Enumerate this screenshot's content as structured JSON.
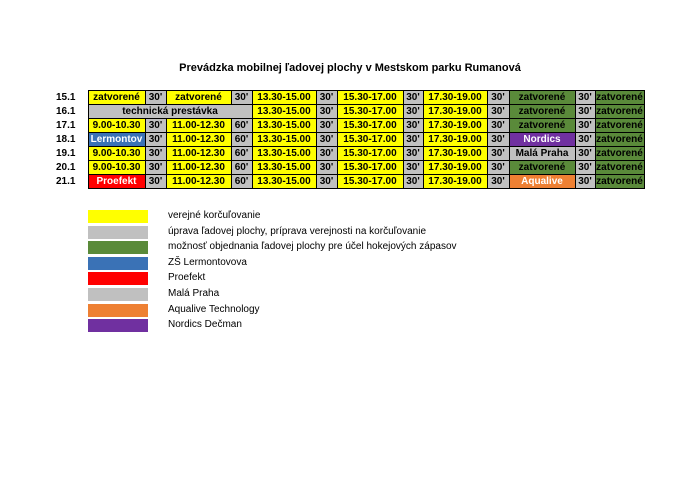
{
  "title": "Prevádzka mobilnej ľadovej plochy v Mestskom parku Rumanová",
  "colors": {
    "yellow": "#ffff00",
    "gray": "#c0c0c0",
    "green": "#5a8a3a",
    "blue": "#3a72b6",
    "red": "#ff0000",
    "orange": "#ee8033",
    "purple": "#7030a0"
  },
  "schedule": [
    {
      "day": "15.1",
      "cells": [
        {
          "text": "zatvorené",
          "color": "yellow",
          "span": 1
        },
        {
          "text": "30'",
          "color": "gray",
          "span": 1
        },
        {
          "text": "zatvorené",
          "color": "yellow",
          "span": 1
        },
        {
          "text": "30'",
          "color": "gray",
          "span": 1
        },
        {
          "text": "13.30-15.00",
          "color": "yellow",
          "span": 1
        },
        {
          "text": "30'",
          "color": "gray",
          "span": 1
        },
        {
          "text": "15.30-17.00",
          "color": "yellow",
          "span": 1
        },
        {
          "text": "30'",
          "color": "gray",
          "span": 1
        },
        {
          "text": "17.30-19.00",
          "color": "yellow",
          "span": 1
        },
        {
          "text": "30'",
          "color": "gray",
          "span": 1
        },
        {
          "text": "zatvorené",
          "color": "green",
          "span": 1
        },
        {
          "text": "30'",
          "color": "gray",
          "span": 1
        },
        {
          "text": "zatvorené",
          "color": "green",
          "span": 1
        }
      ]
    },
    {
      "day": "16.1",
      "cells": [
        {
          "text": "technická prestávka",
          "color": "gray",
          "span": 4
        },
        {
          "text": "13.30-15.00",
          "color": "yellow",
          "span": 1
        },
        {
          "text": "30'",
          "color": "gray",
          "span": 1
        },
        {
          "text": "15.30-17.00",
          "color": "yellow",
          "span": 1
        },
        {
          "text": "30'",
          "color": "gray",
          "span": 1
        },
        {
          "text": "17.30-19.00",
          "color": "yellow",
          "span": 1
        },
        {
          "text": "30'",
          "color": "gray",
          "span": 1
        },
        {
          "text": "zatvorené",
          "color": "green",
          "span": 1
        },
        {
          "text": "30'",
          "color": "gray",
          "span": 1
        },
        {
          "text": "zatvorené",
          "color": "green",
          "span": 1
        }
      ]
    },
    {
      "day": "17.1",
      "cells": [
        {
          "text": "9.00-10.30",
          "color": "yellow",
          "span": 1
        },
        {
          "text": "30'",
          "color": "gray",
          "span": 1
        },
        {
          "text": "11.00-12.30",
          "color": "yellow",
          "span": 1
        },
        {
          "text": "60'",
          "color": "gray",
          "span": 1
        },
        {
          "text": "13.30-15.00",
          "color": "yellow",
          "span": 1
        },
        {
          "text": "30'",
          "color": "gray",
          "span": 1
        },
        {
          "text": "15.30-17.00",
          "color": "yellow",
          "span": 1
        },
        {
          "text": "30'",
          "color": "gray",
          "span": 1
        },
        {
          "text": "17.30-19.00",
          "color": "yellow",
          "span": 1
        },
        {
          "text": "30'",
          "color": "gray",
          "span": 1
        },
        {
          "text": "zatvorené",
          "color": "green",
          "span": 1
        },
        {
          "text": "30'",
          "color": "gray",
          "span": 1
        },
        {
          "text": "zatvorené",
          "color": "green",
          "span": 1
        }
      ]
    },
    {
      "day": "18.1",
      "cells": [
        {
          "text": "Lermontov",
          "color": "blue",
          "span": 1
        },
        {
          "text": "30'",
          "color": "gray",
          "span": 1
        },
        {
          "text": "11.00-12.30",
          "color": "yellow",
          "span": 1
        },
        {
          "text": "60'",
          "color": "gray",
          "span": 1
        },
        {
          "text": "13.30-15.00",
          "color": "yellow",
          "span": 1
        },
        {
          "text": "30'",
          "color": "gray",
          "span": 1
        },
        {
          "text": "15.30-17.00",
          "color": "yellow",
          "span": 1
        },
        {
          "text": "30'",
          "color": "gray",
          "span": 1
        },
        {
          "text": "17.30-19.00",
          "color": "yellow",
          "span": 1
        },
        {
          "text": "30'",
          "color": "gray",
          "span": 1
        },
        {
          "text": "Nordics",
          "color": "purple",
          "span": 1
        },
        {
          "text": "30'",
          "color": "gray",
          "span": 1
        },
        {
          "text": "zatvorené",
          "color": "green",
          "span": 1
        }
      ]
    },
    {
      "day": "19.1",
      "cells": [
        {
          "text": "9.00-10.30",
          "color": "yellow",
          "span": 1
        },
        {
          "text": "30'",
          "color": "gray",
          "span": 1
        },
        {
          "text": "11.00-12.30",
          "color": "yellow",
          "span": 1
        },
        {
          "text": "60'",
          "color": "gray",
          "span": 1
        },
        {
          "text": "13.30-15.00",
          "color": "yellow",
          "span": 1
        },
        {
          "text": "30'",
          "color": "gray",
          "span": 1
        },
        {
          "text": "15.30-17.00",
          "color": "yellow",
          "span": 1
        },
        {
          "text": "30'",
          "color": "gray",
          "span": 1
        },
        {
          "text": "17.30-19.00",
          "color": "yellow",
          "span": 1
        },
        {
          "text": "30'",
          "color": "gray",
          "span": 1
        },
        {
          "text": "Malá Praha",
          "color": "gray",
          "span": 1
        },
        {
          "text": "30'",
          "color": "gray",
          "span": 1
        },
        {
          "text": "zatvorené",
          "color": "green",
          "span": 1
        }
      ]
    },
    {
      "day": "20.1",
      "cells": [
        {
          "text": "9.00-10.30",
          "color": "yellow",
          "span": 1
        },
        {
          "text": "30'",
          "color": "gray",
          "span": 1
        },
        {
          "text": "11.00-12.30",
          "color": "yellow",
          "span": 1
        },
        {
          "text": "60'",
          "color": "gray",
          "span": 1
        },
        {
          "text": "13.30-15.00",
          "color": "yellow",
          "span": 1
        },
        {
          "text": "30'",
          "color": "gray",
          "span": 1
        },
        {
          "text": "15.30-17.00",
          "color": "yellow",
          "span": 1
        },
        {
          "text": "30'",
          "color": "gray",
          "span": 1
        },
        {
          "text": "17.30-19.00",
          "color": "yellow",
          "span": 1
        },
        {
          "text": "30'",
          "color": "gray",
          "span": 1
        },
        {
          "text": "zatvorené",
          "color": "green",
          "span": 1
        },
        {
          "text": "30'",
          "color": "gray",
          "span": 1
        },
        {
          "text": "zatvorené",
          "color": "green",
          "span": 1
        }
      ]
    },
    {
      "day": "21.1",
      "cells": [
        {
          "text": "Proefekt",
          "color": "red",
          "span": 1
        },
        {
          "text": "30'",
          "color": "gray",
          "span": 1
        },
        {
          "text": "11.00-12.30",
          "color": "yellow",
          "span": 1
        },
        {
          "text": "60'",
          "color": "gray",
          "span": 1
        },
        {
          "text": "13.30-15.00",
          "color": "yellow",
          "span": 1
        },
        {
          "text": "30'",
          "color": "gray",
          "span": 1
        },
        {
          "text": "15.30-17.00",
          "color": "yellow",
          "span": 1
        },
        {
          "text": "30'",
          "color": "gray",
          "span": 1
        },
        {
          "text": "17.30-19.00",
          "color": "yellow",
          "span": 1
        },
        {
          "text": "30'",
          "color": "gray",
          "span": 1
        },
        {
          "text": "Aqualive",
          "color": "orange",
          "span": 1
        },
        {
          "text": "30'",
          "color": "gray",
          "span": 1
        },
        {
          "text": "zatvorené",
          "color": "green",
          "span": 1
        }
      ]
    }
  ],
  "legend": [
    {
      "color": "yellow",
      "label": "verejné korčuľovanie"
    },
    {
      "color": "gray",
      "label": "úprava ľadovej plochy, príprava verejnosti na korčuľovanie"
    },
    {
      "color": "green",
      "label": "možnosť objednania ľadovej plochy pre účel hokejových zápasov"
    },
    {
      "color": "blue",
      "label": " ZŠ Lermontovova"
    },
    {
      "color": "red",
      "label": " Proefekt"
    },
    {
      "color": "gray",
      "label": " Malá Praha"
    },
    {
      "color": "orange",
      "label": " Aqualive Technology"
    },
    {
      "color": "purple",
      "label": " Nordics Dečman"
    }
  ]
}
